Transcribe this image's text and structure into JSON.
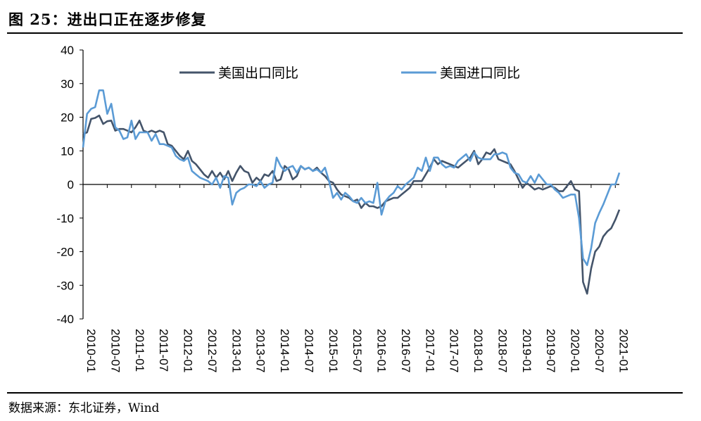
{
  "figure": {
    "title": "图 25：进出口正在逐步修复",
    "source": "数据来源：东北证券，Wind"
  },
  "chart_data": {
    "type": "line",
    "title": "",
    "xlabel": "",
    "ylabel": "",
    "ylim": [
      -40,
      40
    ],
    "yticks": [
      40,
      30,
      20,
      10,
      0,
      -10,
      -20,
      -30,
      -40
    ],
    "xlim": [
      "2010-01",
      "2021-02"
    ],
    "xticks": [
      "2010-01",
      "2010-07",
      "2011-01",
      "2011-07",
      "2012-01",
      "2012-07",
      "2013-01",
      "2013-07",
      "2014-01",
      "2014-07",
      "2015-01",
      "2015-07",
      "2016-01",
      "2016-07",
      "2017-01",
      "2017-07",
      "2018-01",
      "2018-07",
      "2019-01",
      "2019-07",
      "2020-01",
      "2020-07",
      "2021-01"
    ],
    "legend_position": "top",
    "grid": false,
    "series": [
      {
        "name": "美国出口同比",
        "color": "#44546A",
        "points": [
          [
            "2010-01",
            15
          ],
          [
            "2010-02",
            15.5
          ],
          [
            "2010-03",
            19.5
          ],
          [
            "2010-04",
            19.8
          ],
          [
            "2010-05",
            20.5
          ],
          [
            "2010-06",
            18
          ],
          [
            "2010-07",
            18.8
          ],
          [
            "2010-08",
            19
          ],
          [
            "2010-09",
            16
          ],
          [
            "2010-10",
            16.5
          ],
          [
            "2010-11",
            16.5
          ],
          [
            "2010-12",
            16
          ],
          [
            "2011-01",
            15.5
          ],
          [
            "2011-02",
            17
          ],
          [
            "2011-03",
            19
          ],
          [
            "2011-04",
            16
          ],
          [
            "2011-05",
            15.5
          ],
          [
            "2011-06",
            16
          ],
          [
            "2011-07",
            15.5
          ],
          [
            "2011-08",
            16
          ],
          [
            "2011-09",
            15.5
          ],
          [
            "2011-10",
            12
          ],
          [
            "2011-11",
            11.5
          ],
          [
            "2011-12",
            10
          ],
          [
            "2012-01",
            8.5
          ],
          [
            "2012-02",
            7.5
          ],
          [
            "2012-03",
            10
          ],
          [
            "2012-04",
            7
          ],
          [
            "2012-05",
            6
          ],
          [
            "2012-06",
            4.5
          ],
          [
            "2012-07",
            3
          ],
          [
            "2012-08",
            2
          ],
          [
            "2012-09",
            4
          ],
          [
            "2012-10",
            2
          ],
          [
            "2012-11",
            3.5
          ],
          [
            "2012-12",
            1.5
          ],
          [
            "2013-01",
            4
          ],
          [
            "2013-02",
            1
          ],
          [
            "2013-03",
            3.5
          ],
          [
            "2013-04",
            5.5
          ],
          [
            "2013-05",
            4
          ],
          [
            "2013-06",
            3.5
          ],
          [
            "2013-07",
            0.5
          ],
          [
            "2013-08",
            2
          ],
          [
            "2013-09",
            1
          ],
          [
            "2013-10",
            3
          ],
          [
            "2013-11",
            2.5
          ],
          [
            "2013-12",
            4
          ],
          [
            "2014-01",
            1
          ],
          [
            "2014-02",
            1.5
          ],
          [
            "2014-03",
            5.5
          ],
          [
            "2014-04",
            4.5
          ],
          [
            "2014-05",
            1.5
          ],
          [
            "2014-06",
            2.5
          ],
          [
            "2014-07",
            5.5
          ],
          [
            "2014-08",
            4.5
          ],
          [
            "2014-09",
            5
          ],
          [
            "2014-10",
            4
          ],
          [
            "2014-11",
            5
          ],
          [
            "2014-12",
            3.5
          ],
          [
            "2015-01",
            2.5
          ],
          [
            "2015-02",
            1
          ],
          [
            "2015-03",
            0.5
          ],
          [
            "2015-04",
            -1.5
          ],
          [
            "2015-05",
            -3
          ],
          [
            "2015-06",
            -3.5
          ],
          [
            "2015-07",
            -4
          ],
          [
            "2015-08",
            -5
          ],
          [
            "2015-09",
            -4.5
          ],
          [
            "2015-10",
            -7
          ],
          [
            "2015-11",
            -5.5
          ],
          [
            "2015-12",
            -6.5
          ],
          [
            "2016-01",
            -6.5
          ],
          [
            "2016-02",
            -7
          ],
          [
            "2016-03",
            -6.5
          ],
          [
            "2016-04",
            -5
          ],
          [
            "2016-05",
            -4.5
          ],
          [
            "2016-06",
            -4
          ],
          [
            "2016-07",
            -4
          ],
          [
            "2016-08",
            -3
          ],
          [
            "2016-09",
            -2
          ],
          [
            "2016-10",
            -1
          ],
          [
            "2016-11",
            1
          ],
          [
            "2016-12",
            1
          ],
          [
            "2017-01",
            1
          ],
          [
            "2017-02",
            3
          ],
          [
            "2017-03",
            5
          ],
          [
            "2017-04",
            7.5
          ],
          [
            "2017-05",
            6
          ],
          [
            "2017-06",
            7
          ],
          [
            "2017-07",
            6.5
          ],
          [
            "2017-08",
            6
          ],
          [
            "2017-09",
            5.5
          ],
          [
            "2017-10",
            5
          ],
          [
            "2017-11",
            6
          ],
          [
            "2017-12",
            7
          ],
          [
            "2018-01",
            8
          ],
          [
            "2018-02",
            10
          ],
          [
            "2018-03",
            6
          ],
          [
            "2018-04",
            7.5
          ],
          [
            "2018-05",
            9.5
          ],
          [
            "2018-06",
            9
          ],
          [
            "2018-07",
            10.5
          ],
          [
            "2018-08",
            7.5
          ],
          [
            "2018-09",
            7
          ],
          [
            "2018-10",
            6.5
          ],
          [
            "2018-11",
            6
          ],
          [
            "2018-12",
            4
          ],
          [
            "2019-01",
            1.5
          ],
          [
            "2019-02",
            -1
          ],
          [
            "2019-03",
            0.5
          ],
          [
            "2019-04",
            -0.5
          ],
          [
            "2019-05",
            -1.5
          ],
          [
            "2019-06",
            -1
          ],
          [
            "2019-07",
            -1.5
          ],
          [
            "2019-08",
            -1
          ],
          [
            "2019-09",
            -0.5
          ],
          [
            "2019-10",
            -1
          ],
          [
            "2019-11",
            -2
          ],
          [
            "2019-12",
            -2
          ],
          [
            "2020-01",
            -0.5
          ],
          [
            "2020-02",
            1
          ],
          [
            "2020-03",
            -1.5
          ],
          [
            "2020-04",
            -2
          ],
          [
            "2020-05",
            -29
          ],
          [
            "2020-06",
            -32.5
          ],
          [
            "2020-07",
            -25
          ],
          [
            "2020-08",
            -20
          ],
          [
            "2020-09",
            -18.5
          ],
          [
            "2020-10",
            -15.5
          ],
          [
            "2020-11",
            -14
          ],
          [
            "2020-12",
            -13
          ],
          [
            "2021-01",
            -10.5
          ],
          [
            "2021-02",
            -7.5
          ]
        ]
      },
      {
        "name": "美国进口同比",
        "color": "#5B9BD5",
        "points": [
          [
            "2010-01",
            11
          ],
          [
            "2010-02",
            21
          ],
          [
            "2010-03",
            22.5
          ],
          [
            "2010-04",
            23
          ],
          [
            "2010-05",
            28
          ],
          [
            "2010-06",
            28
          ],
          [
            "2010-07",
            21
          ],
          [
            "2010-08",
            24
          ],
          [
            "2010-09",
            17
          ],
          [
            "2010-10",
            16
          ],
          [
            "2010-11",
            13.5
          ],
          [
            "2010-12",
            14
          ],
          [
            "2011-01",
            19
          ],
          [
            "2011-02",
            13.5
          ],
          [
            "2011-03",
            15.5
          ],
          [
            "2011-04",
            15.5
          ],
          [
            "2011-05",
            15.5
          ],
          [
            "2011-06",
            13
          ],
          [
            "2011-07",
            15
          ],
          [
            "2011-08",
            12
          ],
          [
            "2011-09",
            12
          ],
          [
            "2011-10",
            11.5
          ],
          [
            "2011-11",
            11
          ],
          [
            "2011-12",
            8.5
          ],
          [
            "2012-01",
            7.5
          ],
          [
            "2012-02",
            7
          ],
          [
            "2012-03",
            8
          ],
          [
            "2012-04",
            4
          ],
          [
            "2012-05",
            3
          ],
          [
            "2012-06",
            2
          ],
          [
            "2012-07",
            1.5
          ],
          [
            "2012-08",
            1
          ],
          [
            "2012-09",
            0
          ],
          [
            "2012-10",
            2
          ],
          [
            "2012-11",
            -1
          ],
          [
            "2012-12",
            2.5
          ],
          [
            "2013-01",
            2
          ],
          [
            "2013-02",
            -6
          ],
          [
            "2013-03",
            -2.5
          ],
          [
            "2013-04",
            -1.5
          ],
          [
            "2013-05",
            -1
          ],
          [
            "2013-06",
            0
          ],
          [
            "2013-07",
            0
          ],
          [
            "2013-08",
            -0.5
          ],
          [
            "2013-09",
            1
          ],
          [
            "2013-10",
            -1
          ],
          [
            "2013-11",
            0
          ],
          [
            "2013-12",
            0.5
          ],
          [
            "2014-01",
            8
          ],
          [
            "2014-02",
            5.5
          ],
          [
            "2014-03",
            4
          ],
          [
            "2014-04",
            5
          ],
          [
            "2014-05",
            5.5
          ],
          [
            "2014-06",
            3.5
          ],
          [
            "2014-07",
            5.5
          ],
          [
            "2014-08",
            4.5
          ],
          [
            "2014-09",
            5
          ],
          [
            "2014-10",
            4
          ],
          [
            "2014-11",
            4.5
          ],
          [
            "2014-12",
            3.5
          ],
          [
            "2015-01",
            5
          ],
          [
            "2015-02",
            1
          ],
          [
            "2015-03",
            -4
          ],
          [
            "2015-04",
            -2.5
          ],
          [
            "2015-05",
            -4.5
          ],
          [
            "2015-06",
            -2.5
          ],
          [
            "2015-07",
            -3.5
          ],
          [
            "2015-08",
            -5
          ],
          [
            "2015-09",
            -5.5
          ],
          [
            "2015-10",
            -4
          ],
          [
            "2015-11",
            -5.5
          ],
          [
            "2015-12",
            -5
          ],
          [
            "2016-01",
            -5.5
          ],
          [
            "2016-02",
            0.5
          ],
          [
            "2016-03",
            -9
          ],
          [
            "2016-04",
            -5
          ],
          [
            "2016-05",
            -3.5
          ],
          [
            "2016-06",
            -2.5
          ],
          [
            "2016-07",
            -0.5
          ],
          [
            "2016-08",
            -1.5
          ],
          [
            "2016-09",
            0
          ],
          [
            "2016-10",
            1
          ],
          [
            "2016-11",
            2
          ],
          [
            "2016-12",
            5
          ],
          [
            "2017-01",
            4
          ],
          [
            "2017-02",
            8
          ],
          [
            "2017-03",
            4
          ],
          [
            "2017-04",
            8
          ],
          [
            "2017-05",
            8
          ],
          [
            "2017-06",
            6
          ],
          [
            "2017-07",
            5
          ],
          [
            "2017-08",
            5.5
          ],
          [
            "2017-09",
            5
          ],
          [
            "2017-10",
            7
          ],
          [
            "2017-11",
            8
          ],
          [
            "2017-12",
            9
          ],
          [
            "2018-01",
            7
          ],
          [
            "2018-02",
            9.5
          ],
          [
            "2018-03",
            8
          ],
          [
            "2018-04",
            7.5
          ],
          [
            "2018-05",
            7.5
          ],
          [
            "2018-06",
            7.5
          ],
          [
            "2018-07",
            9
          ],
          [
            "2018-08",
            9
          ],
          [
            "2018-09",
            9.5
          ],
          [
            "2018-10",
            9
          ],
          [
            "2018-11",
            5
          ],
          [
            "2018-12",
            3.5
          ],
          [
            "2019-01",
            3
          ],
          [
            "2019-02",
            1
          ],
          [
            "2019-03",
            0.5
          ],
          [
            "2019-04",
            2.5
          ],
          [
            "2019-05",
            0.5
          ],
          [
            "2019-06",
            3
          ],
          [
            "2019-07",
            1.5
          ],
          [
            "2019-08",
            0
          ],
          [
            "2019-09",
            0
          ],
          [
            "2019-10",
            -1.5
          ],
          [
            "2019-11",
            -2.5
          ],
          [
            "2019-12",
            -4
          ],
          [
            "2020-01",
            -3.5
          ],
          [
            "2020-02",
            -3
          ],
          [
            "2020-03",
            -3
          ],
          [
            "2020-04",
            -10
          ],
          [
            "2020-05",
            -22
          ],
          [
            "2020-06",
            -24
          ],
          [
            "2020-07",
            -19
          ],
          [
            "2020-08",
            -11.5
          ],
          [
            "2020-09",
            -8.5
          ],
          [
            "2020-10",
            -6
          ],
          [
            "2020-11",
            -3
          ],
          [
            "2020-12",
            0
          ],
          [
            "2021-01",
            0
          ],
          [
            "2021-02",
            3.5
          ]
        ]
      }
    ]
  }
}
